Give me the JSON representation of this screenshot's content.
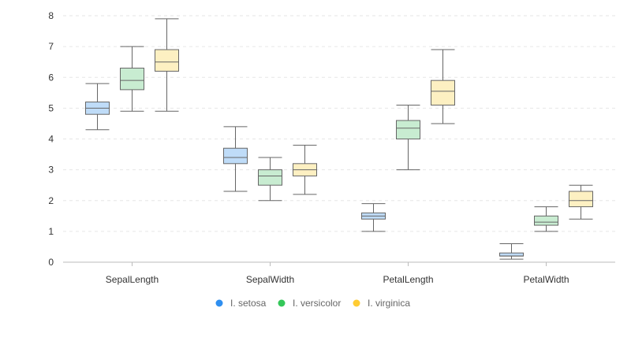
{
  "chart_data": {
    "type": "boxplot",
    "categories": [
      "SepalLength",
      "SepalWidth",
      "PetalLength",
      "PetalWidth"
    ],
    "ylim": [
      0,
      8
    ],
    "yticks": [
      0,
      1,
      2,
      3,
      4,
      5,
      6,
      7,
      8
    ],
    "grid": true,
    "legend_position": "bottom",
    "series": [
      {
        "name": "I. setosa",
        "color": "#2f8ff0",
        "fill": "#bfdcf8",
        "boxes": [
          {
            "min": 4.3,
            "q1": 4.8,
            "median": 5.0,
            "q3": 5.2,
            "max": 5.8
          },
          {
            "min": 2.3,
            "q1": 3.2,
            "median": 3.4,
            "q3": 3.7,
            "max": 4.4
          },
          {
            "min": 1.0,
            "q1": 1.4,
            "median": 1.5,
            "q3": 1.6,
            "max": 1.9
          },
          {
            "min": 0.1,
            "q1": 0.2,
            "median": 0.2,
            "q3": 0.3,
            "max": 0.6
          }
        ]
      },
      {
        "name": "I. versicolor",
        "color": "#34c759",
        "fill": "#c8ecd1",
        "boxes": [
          {
            "min": 4.9,
            "q1": 5.6,
            "median": 5.9,
            "q3": 6.3,
            "max": 7.0
          },
          {
            "min": 2.0,
            "q1": 2.5,
            "median": 2.8,
            "q3": 3.0,
            "max": 3.4
          },
          {
            "min": 3.0,
            "q1": 4.0,
            "median": 4.35,
            "q3": 4.6,
            "max": 5.1
          },
          {
            "min": 1.0,
            "q1": 1.2,
            "median": 1.3,
            "q3": 1.5,
            "max": 1.8
          }
        ]
      },
      {
        "name": "I. virginica",
        "color": "#ffcc33",
        "fill": "#fdf0c2",
        "boxes": [
          {
            "min": 4.9,
            "q1": 6.2,
            "median": 6.5,
            "q3": 6.9,
            "max": 7.9
          },
          {
            "min": 2.2,
            "q1": 2.8,
            "median": 3.0,
            "q3": 3.2,
            "max": 3.8
          },
          {
            "min": 4.5,
            "q1": 5.1,
            "median": 5.55,
            "q3": 5.9,
            "max": 6.9
          },
          {
            "min": 1.4,
            "q1": 1.8,
            "median": 2.0,
            "q3": 2.3,
            "max": 2.5
          }
        ]
      }
    ]
  }
}
